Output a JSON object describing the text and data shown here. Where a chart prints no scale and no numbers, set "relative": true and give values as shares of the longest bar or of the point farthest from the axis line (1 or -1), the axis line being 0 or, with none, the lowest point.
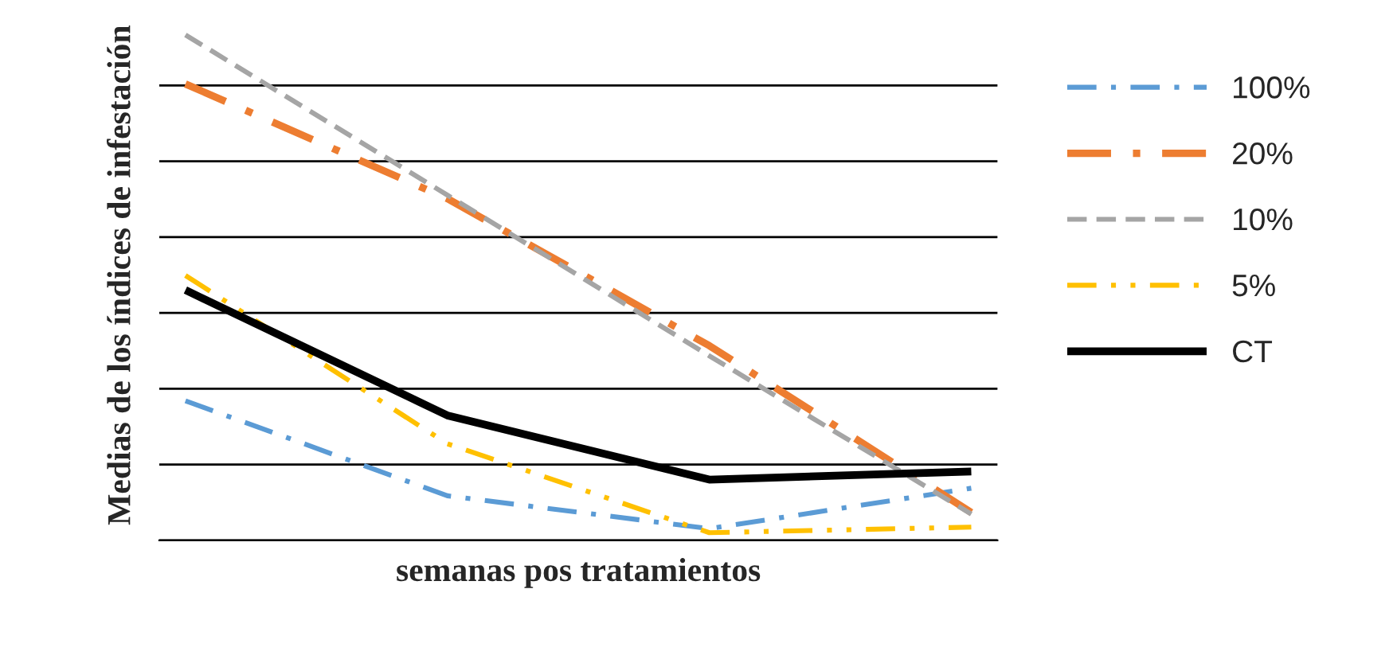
{
  "chart_data": {
    "type": "line",
    "relative": true,
    "xlabel": "semanas pos tratamientos",
    "ylabel": "Medias de los índices de infestación",
    "categories": [
      null,
      null,
      null,
      null
    ],
    "grid": "y",
    "legend": "right",
    "tick_labels": false,
    "series": [
      {
        "name": "100%",
        "color": "#5b9bd5",
        "line_style": "dashdot",
        "values": [
          0.276,
          0.088,
          0.023,
          0.103
        ]
      },
      {
        "name": "20%",
        "color": "#ed7d31",
        "line_style": "dashdot",
        "values": [
          0.903,
          0.676,
          0.385,
          0.055
        ]
      },
      {
        "name": "10%",
        "color": "#a5a5a5",
        "line_style": "dashed",
        "values": [
          1,
          0.683,
          0.365,
          0.052
        ]
      },
      {
        "name": "5%",
        "color": "#ffc000",
        "line_style": "dashdotdot",
        "values": [
          0.524,
          0.191,
          0.015,
          0.026
        ]
      },
      {
        "name": "CT",
        "color": "#000000",
        "line_style": "solid",
        "values": [
          0.495,
          0.247,
          0.12,
          0.136
        ]
      }
    ]
  }
}
